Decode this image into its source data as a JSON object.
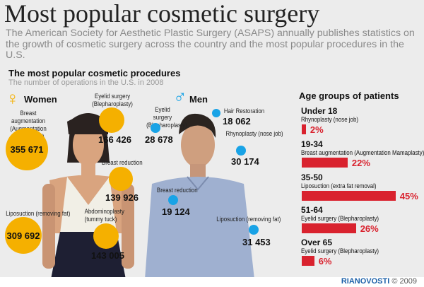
{
  "title": "Most popular cosmetic surgery",
  "subtitle": "The American Society for Aesthetic Plastic Surgery (ASAPS) annually publishes statistics on the growth of cosmetic surgery across the country and the most popular procedures in the U.S.",
  "section_title": "The most popular cosmetic procedures",
  "section_subtitle": "The number of operations in the U.S. in 2008",
  "colors": {
    "women": "#f5b000",
    "men": "#19a3e6",
    "bars": "#d9222e"
  },
  "women": {
    "label": "Women",
    "icon": "female-symbol-icon",
    "items": [
      {
        "label": "Breast augmentation\n(Augmentation\nMamaplasty)",
        "value": "355 671"
      },
      {
        "label": "Eyelid surgery\n(Blepharoplasty)",
        "value": "166 426"
      },
      {
        "label": "Breast reduction",
        "value": "139 926"
      },
      {
        "label": "Liposuction (removing fat)",
        "value": "309 692"
      },
      {
        "label": "Abdominoplasty\n(tummy tuck)",
        "value": "143 005"
      }
    ]
  },
  "men": {
    "label": "Men",
    "icon": "male-symbol-icon",
    "items": [
      {
        "label": "Eyelid surgery\n(Blepharoplasty)",
        "value": "28 678"
      },
      {
        "label": "Hair Restoration",
        "value": "18 062"
      },
      {
        "label": "Rhynoplasty (nose job)",
        "value": "30 174"
      },
      {
        "label": "Breast reduction",
        "value": "19 124"
      },
      {
        "label": "Liposuction (removing fat)",
        "value": "31 453"
      }
    ]
  },
  "age_groups": {
    "title": "Age groups of patients",
    "groups": [
      {
        "age": "Under 18",
        "procedure": "Rhynoplasty (nose job)",
        "percent": 2,
        "label": "2%"
      },
      {
        "age": "19-34",
        "procedure": "Breast augmentation (Augmentation Mamaplasty)",
        "percent": 22,
        "label": "22%"
      },
      {
        "age": "35-50",
        "procedure": "Liposuction (extra fat removal)",
        "percent": 45,
        "label": "45%"
      },
      {
        "age": "51-64",
        "procedure": "Eyelid surgery (Blepharoplasty)",
        "percent": 26,
        "label": "26%"
      },
      {
        "age": "Over 65",
        "procedure": "Eyelid surgery (Blepharoplasty)",
        "percent": 6,
        "label": "6%"
      }
    ]
  },
  "watermark": "RIANOVOSTI",
  "footer": {
    "brand": "RIANOVOSTI",
    "copyright": "© 2009"
  }
}
